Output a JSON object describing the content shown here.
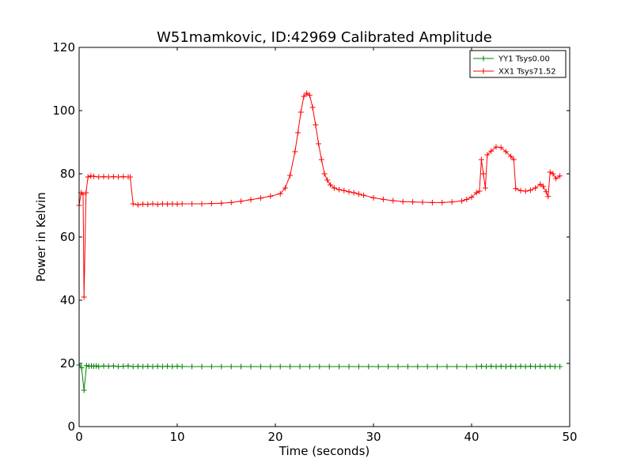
{
  "chart_data": {
    "type": "line",
    "title": "W51mamkovic, ID:42969 Calibrated Amplitude",
    "xlabel": "Time (seconds)",
    "ylabel": "Power in Kelvin",
    "xlim": [
      0,
      50
    ],
    "ylim": [
      0,
      120
    ],
    "xticks": [
      "0",
      "10",
      "20",
      "30",
      "40",
      "50"
    ],
    "yticks": [
      "0",
      "20",
      "40",
      "60",
      "80",
      "100",
      "120"
    ],
    "grid": false,
    "legend_position": "top-right",
    "marker": "+",
    "series": [
      {
        "name": "YY1 Tsys0.00",
        "color": "#008000",
        "x": [
          0.0,
          0.25,
          0.5,
          0.75,
          1.0,
          1.25,
          1.5,
          1.75,
          2.0,
          2.5,
          3.0,
          3.5,
          4.0,
          4.5,
          5.0,
          5.5,
          6.0,
          6.5,
          7.0,
          7.5,
          8.0,
          8.5,
          9.0,
          9.5,
          10.0,
          10.5,
          11.5,
          12.5,
          13.5,
          14.5,
          15.5,
          16.5,
          17.5,
          18.5,
          19.5,
          20.5,
          21.5,
          22.5,
          23.5,
          24.5,
          25.5,
          26.5,
          27.5,
          28.5,
          29.5,
          30.5,
          31.5,
          32.5,
          33.5,
          34.5,
          35.5,
          36.5,
          37.5,
          38.5,
          39.5,
          40.5,
          41.0,
          41.5,
          42.0,
          42.5,
          43.0,
          43.5,
          44.0,
          44.5,
          45.0,
          45.5,
          46.0,
          46.5,
          47.0,
          47.5,
          48.0,
          48.5,
          49.0
        ],
        "y": [
          19.5,
          18.6,
          11.5,
          19.3,
          19.1,
          19.2,
          19.1,
          19.2,
          19.0,
          19.2,
          19.1,
          19.2,
          19.0,
          19.1,
          19.2,
          19.0,
          19.1,
          19.0,
          19.1,
          19.0,
          19.1,
          19.0,
          19.1,
          19.0,
          19.1,
          19.0,
          19.0,
          19.0,
          19.0,
          19.0,
          19.0,
          19.0,
          19.0,
          19.0,
          19.0,
          19.0,
          19.0,
          19.0,
          19.0,
          19.0,
          19.0,
          19.0,
          19.0,
          19.0,
          19.0,
          19.0,
          19.0,
          19.0,
          19.0,
          19.0,
          19.0,
          19.0,
          19.0,
          19.0,
          19.0,
          19.0,
          19.1,
          19.0,
          19.1,
          19.0,
          19.1,
          19.0,
          19.1,
          19.0,
          19.1,
          19.0,
          19.1,
          19.0,
          19.1,
          19.0,
          19.1,
          19.0,
          19.0
        ]
      },
      {
        "name": "XX1 Tsys71.52",
        "color": "#ff0000",
        "x": [
          0.0,
          0.2,
          0.4,
          0.5,
          0.7,
          0.9,
          1.2,
          1.5,
          2.0,
          2.5,
          3.0,
          3.5,
          4.0,
          4.5,
          5.0,
          5.2,
          5.5,
          6.0,
          6.5,
          7.0,
          7.5,
          8.0,
          8.5,
          9.0,
          9.5,
          10.0,
          10.5,
          11.5,
          12.5,
          13.5,
          14.5,
          15.5,
          16.5,
          17.5,
          18.5,
          19.5,
          20.5,
          21.0,
          21.5,
          22.0,
          22.3,
          22.6,
          22.9,
          23.2,
          23.5,
          23.8,
          24.1,
          24.4,
          24.7,
          25.0,
          25.3,
          25.6,
          26.0,
          26.5,
          27.0,
          27.5,
          28.0,
          28.5,
          29.0,
          30.0,
          31.0,
          32.0,
          33.0,
          34.0,
          35.0,
          36.0,
          37.0,
          38.0,
          39.0,
          39.5,
          40.0,
          40.5,
          40.8,
          41.0,
          41.2,
          41.4,
          41.6,
          42.0,
          42.5,
          43.0,
          43.5,
          44.0,
          44.3,
          44.5,
          45.0,
          45.5,
          46.0,
          46.5,
          47.0,
          47.3,
          47.6,
          47.8,
          48.0,
          48.3,
          48.6,
          49.0
        ],
        "y": [
          70.0,
          74.0,
          73.5,
          41.0,
          74.0,
          79.0,
          79.3,
          79.2,
          79.0,
          79.1,
          79.0,
          79.1,
          79.0,
          79.1,
          79.0,
          79.0,
          70.5,
          70.2,
          70.4,
          70.3,
          70.5,
          70.3,
          70.5,
          70.4,
          70.5,
          70.4,
          70.5,
          70.5,
          70.5,
          70.6,
          70.7,
          70.9,
          71.3,
          71.8,
          72.3,
          72.9,
          73.7,
          75.5,
          79.5,
          87.0,
          93.0,
          99.5,
          104.5,
          105.5,
          104.8,
          101.0,
          95.5,
          89.5,
          84.5,
          80.0,
          78.0,
          76.5,
          75.5,
          75.0,
          74.7,
          74.3,
          74.0,
          73.6,
          73.2,
          72.4,
          71.9,
          71.5,
          71.2,
          71.1,
          71.0,
          70.9,
          70.9,
          71.1,
          71.4,
          71.9,
          72.6,
          74.0,
          74.5,
          84.5,
          80.0,
          75.5,
          86.0,
          87.2,
          88.5,
          88.3,
          87.0,
          85.5,
          84.5,
          75.3,
          74.7,
          74.5,
          74.8,
          75.5,
          76.7,
          76.0,
          74.3,
          72.8,
          80.5,
          80.0,
          78.5,
          79.3
        ]
      }
    ]
  }
}
